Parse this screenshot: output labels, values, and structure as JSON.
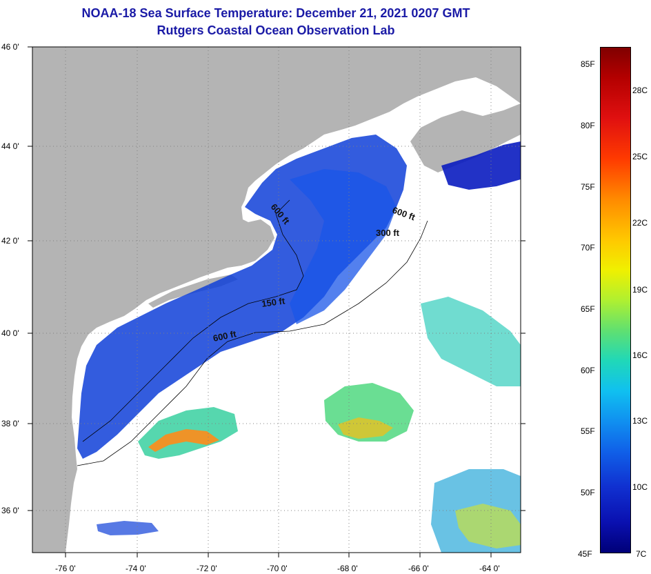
{
  "title": {
    "line1": "NOAA-18 Sea Surface Temperature:  December 21, 2021 0207 GMT",
    "line2": "Rutgers Coastal Ocean Observation Lab"
  },
  "axes": {
    "lat_labels": [
      "46 0'",
      "44 0'",
      "42 0'",
      "40 0'",
      "38 0'",
      "36 0'"
    ],
    "lon_labels": [
      "-76 0'",
      "-74 0'",
      "-72 0'",
      "-70 0'",
      "-68 0'",
      "-66 0'",
      "-64 0'"
    ]
  },
  "isobaths": [
    "600 ft",
    "600 ft",
    "300 ft",
    "150 ft",
    "600 ft"
  ],
  "colorbar": {
    "fahrenheit": [
      "85F",
      "80F",
      "75F",
      "70F",
      "65F",
      "60F",
      "55F",
      "50F",
      "45F"
    ],
    "celsius": [
      "28C",
      "25C",
      "22C",
      "19C",
      "16C",
      "13C",
      "10C",
      "7C"
    ]
  },
  "colors": {
    "land": "#b4b4b4",
    "title": "#1a1aa6",
    "cold": "#0a14c8",
    "warm": "#ff8c00"
  }
}
